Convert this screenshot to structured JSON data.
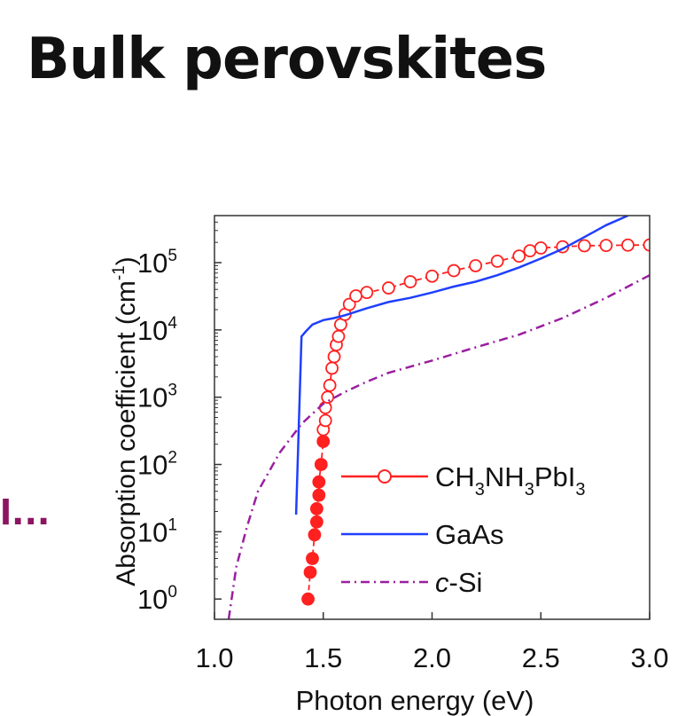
{
  "slide": {
    "title": "Bulk perovskites",
    "cut_text": "l..."
  },
  "chart_data": {
    "type": "line",
    "title": "",
    "xlabel": "Photon energy (eV)",
    "ylabel": "Absorption coefficient (cm",
    "ylabel_sup": "-1",
    "ylabel_close": ")",
    "xlim": [
      1.0,
      3.0
    ],
    "ylim": [
      0.5,
      500000
    ],
    "yscale": "log",
    "xticks": [
      "1.0",
      "1.5",
      "2.0",
      "2.5",
      "3.0"
    ],
    "yticks": [
      {
        "value": 1,
        "base": "10",
        "exp": "0"
      },
      {
        "value": 10,
        "base": "10",
        "exp": "1"
      },
      {
        "value": 100,
        "base": "10",
        "exp": "2"
      },
      {
        "value": 1000,
        "base": "10",
        "exp": "3"
      },
      {
        "value": 10000,
        "base": "10",
        "exp": "4"
      },
      {
        "value": 100000,
        "base": "10",
        "exp": "5"
      }
    ],
    "legend_position": "lower-right",
    "series": [
      {
        "key": "ch3nh3pbi3",
        "legend": [
          {
            "t": "CH",
            "sub": false
          },
          {
            "t": "3",
            "sub": true
          },
          {
            "t": "NH",
            "sub": false
          },
          {
            "t": "3",
            "sub": true
          },
          {
            "t": "PbI",
            "sub": false
          },
          {
            "t": "3",
            "sub": true
          }
        ],
        "color": "#ff2020",
        "style": "dashed-markers",
        "points": [
          [
            1.43,
            1.0
          ],
          [
            1.44,
            2.5
          ],
          [
            1.45,
            4.0
          ],
          [
            1.46,
            9
          ],
          [
            1.47,
            14
          ],
          [
            1.47,
            22
          ],
          [
            1.48,
            35
          ],
          [
            1.48,
            55
          ],
          [
            1.49,
            100
          ],
          [
            1.5,
            220
          ],
          [
            1.5,
            330
          ],
          [
            1.51,
            450
          ],
          [
            1.51,
            700
          ],
          [
            1.52,
            1000
          ],
          [
            1.53,
            1500
          ],
          [
            1.54,
            2700
          ],
          [
            1.55,
            4000
          ],
          [
            1.56,
            6000
          ],
          [
            1.57,
            8000
          ],
          [
            1.58,
            12000
          ],
          [
            1.6,
            17000
          ],
          [
            1.62,
            24000
          ],
          [
            1.65,
            32000
          ],
          [
            1.7,
            36000
          ],
          [
            1.8,
            42000
          ],
          [
            1.9,
            52000
          ],
          [
            2.0,
            63000
          ],
          [
            2.1,
            76000
          ],
          [
            2.2,
            90000
          ],
          [
            2.3,
            105000
          ],
          [
            2.4,
            125000
          ],
          [
            2.45,
            150000
          ],
          [
            2.5,
            165000
          ],
          [
            2.6,
            172000
          ],
          [
            2.7,
            178000
          ],
          [
            2.8,
            180000
          ],
          [
            2.9,
            182000
          ],
          [
            3.0,
            183000
          ]
        ]
      },
      {
        "key": "gaas",
        "legend": [
          {
            "t": "GaAs",
            "sub": false
          }
        ],
        "color": "#1f3fff",
        "style": "solid",
        "points": [
          [
            1.375,
            18
          ],
          [
            1.4,
            8000
          ],
          [
            1.42,
            9500
          ],
          [
            1.45,
            12000
          ],
          [
            1.5,
            14000
          ],
          [
            1.55,
            15000
          ],
          [
            1.6,
            16500
          ],
          [
            1.7,
            21000
          ],
          [
            1.8,
            26000
          ],
          [
            1.9,
            30000
          ],
          [
            2.0,
            36000
          ],
          [
            2.1,
            44000
          ],
          [
            2.2,
            52000
          ],
          [
            2.3,
            65000
          ],
          [
            2.4,
            85000
          ],
          [
            2.5,
            115000
          ],
          [
            2.6,
            160000
          ],
          [
            2.7,
            240000
          ],
          [
            2.8,
            360000
          ],
          [
            2.9,
            500000
          ]
        ]
      },
      {
        "key": "csi",
        "legend": [
          {
            "t": "c",
            "sub": false,
            "italic": true
          },
          {
            "t": "-Si",
            "sub": false
          }
        ],
        "color": "#9a1fa0",
        "style": "dashdot",
        "points": [
          [
            1.065,
            0.5
          ],
          [
            1.1,
            3
          ],
          [
            1.15,
            12
          ],
          [
            1.2,
            40
          ],
          [
            1.3,
            150
          ],
          [
            1.4,
            400
          ],
          [
            1.5,
            800
          ],
          [
            1.6,
            1200
          ],
          [
            1.7,
            1700
          ],
          [
            1.8,
            2300
          ],
          [
            2.0,
            3500
          ],
          [
            2.2,
            5500
          ],
          [
            2.4,
            8500
          ],
          [
            2.6,
            15000
          ],
          [
            2.8,
            30000
          ],
          [
            3.0,
            65000
          ]
        ]
      }
    ]
  }
}
